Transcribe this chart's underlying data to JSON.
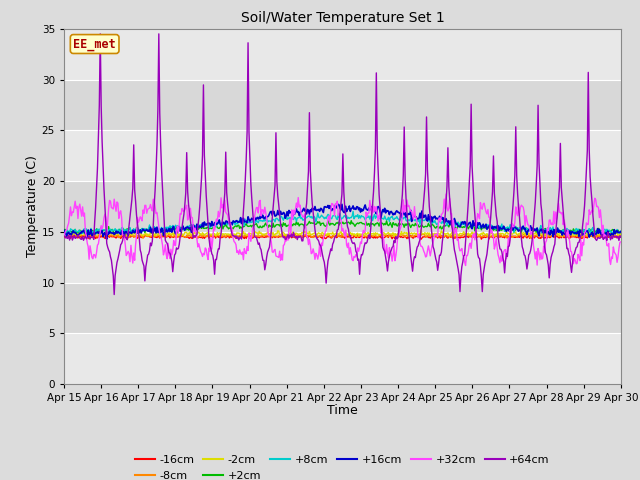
{
  "title": "Soil/Water Temperature Set 1",
  "xlabel": "Time",
  "ylabel": "Temperature (C)",
  "ylim": [
    0,
    35
  ],
  "yticks": [
    0,
    5,
    10,
    15,
    20,
    25,
    30,
    35
  ],
  "xlim": [
    0,
    15
  ],
  "xtick_labels": [
    "Apr 15",
    "Apr 16",
    "Apr 17",
    "Apr 18",
    "Apr 19",
    "Apr 20",
    "Apr 21",
    "Apr 22",
    "Apr 23",
    "Apr 24",
    "Apr 25",
    "Apr 26",
    "Apr 27",
    "Apr 28",
    "Apr 29",
    "Apr 30"
  ],
  "annotation_text": "EE_met",
  "annotation_box_color": "#ffffcc",
  "annotation_text_color": "#aa0000",
  "bg_color": "#dcdcdc",
  "plot_bg_light": "#f0f0f0",
  "plot_bg_dark": "#d8d8d8",
  "series_colors": {
    "-16cm": "#ff0000",
    "-8cm": "#ff8800",
    "-2cm": "#dddd00",
    "+2cm": "#00bb00",
    "+8cm": "#00cccc",
    "+16cm": "#0000cc",
    "+32cm": "#ff44ff",
    "+64cm": "#9900bb"
  },
  "n_points": 600,
  "seed": 7
}
